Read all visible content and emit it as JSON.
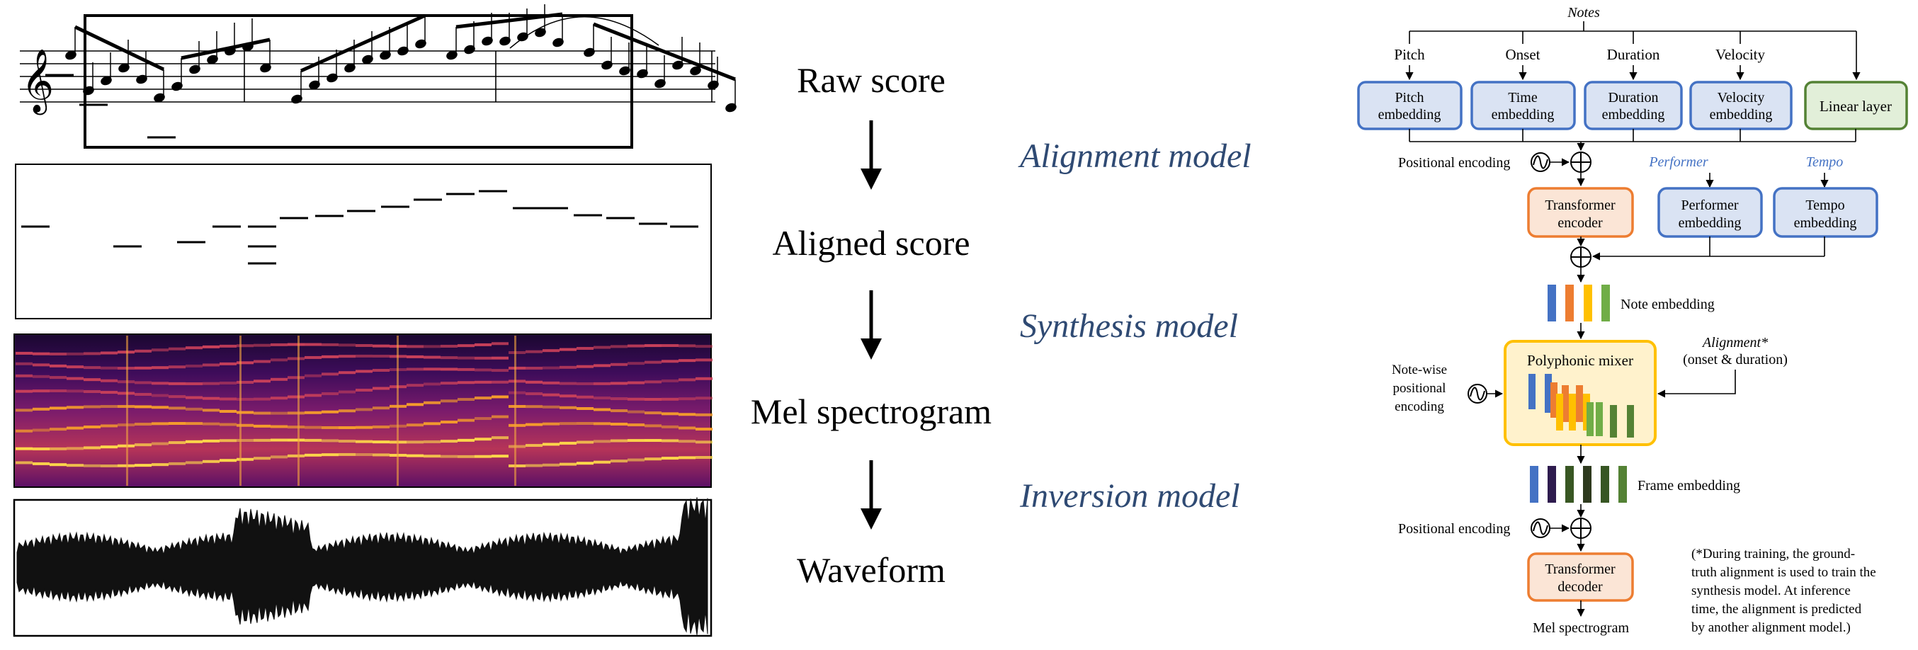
{
  "pipeline": {
    "stages": [
      "Raw score",
      "Aligned score",
      "Mel spectrogram",
      "Waveform"
    ],
    "models": [
      "Alignment model",
      "Synthesis model",
      "Inversion model"
    ],
    "model_color": "#2f4a73"
  },
  "architecture": {
    "notes_label": "Notes",
    "input_labels": [
      "Pitch",
      "Onset",
      "Duration",
      "Velocity"
    ],
    "embed_boxes": [
      "Pitch embedding",
      "Time embedding",
      "Duration embedding",
      "Velocity embedding"
    ],
    "linear_layer": "Linear layer",
    "positional_encoding_1": "Positional encoding",
    "performer_label": "Performer",
    "tempo_label": "Tempo",
    "encoder": "Transformer encoder",
    "performer_embedding": "Performer embedding",
    "tempo_embedding": "Tempo embedding",
    "note_embedding": "Note embedding",
    "notewise_pe": "Note-wise positional encoding",
    "polyphonic_mixer": "Polyphonic mixer",
    "alignment_label": "Alignment*",
    "alignment_sub": "(onset & duration)",
    "frame_embedding": "Frame embedding",
    "positional_encoding_2": "Positional encoding",
    "decoder": "Transformer decoder",
    "output": "Mel spectrogram",
    "footnote": [
      "(*During training, the ground-",
      "truth alignment is used to train the",
      "synthesis model. At inference",
      "time, the alignment is predicted",
      "by another alignment model.)"
    ],
    "colors": {
      "blue_fill": "#dae3f3",
      "blue_stroke": "#4472c4",
      "green_fill": "#e2efd9",
      "green_stroke": "#548235",
      "orange_fill": "#fbe5d6",
      "orange_stroke": "#ed7d31",
      "yellow_fill": "#fff2cc",
      "yellow_stroke": "#ffc000",
      "italic_blue": "#4472c4"
    }
  }
}
